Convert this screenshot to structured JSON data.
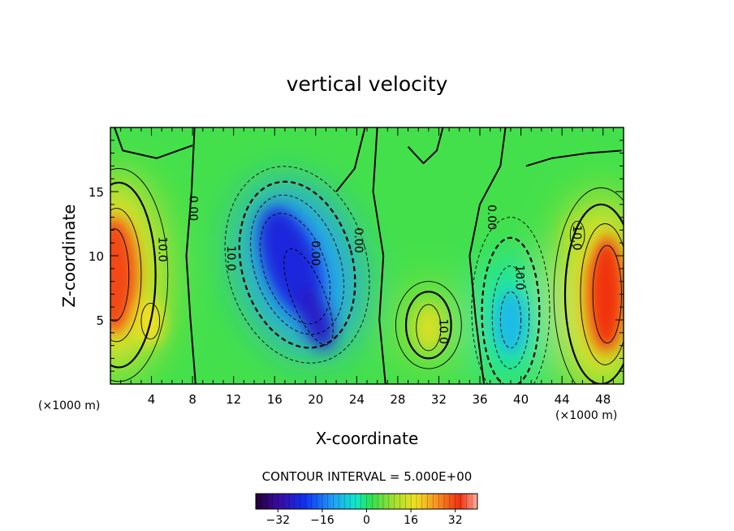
{
  "chart_data": {
    "type": "heatmap",
    "title": "vertical velocity",
    "xlabel": "X-coordinate",
    "ylabel": "Z-coordinate",
    "x_unit": "(×1000 m)",
    "x_unit_right": "(×1000 m)",
    "xlim": [
      0,
      50
    ],
    "ylim": [
      0,
      20
    ],
    "xticks": [
      4,
      8,
      12,
      16,
      20,
      24,
      28,
      32,
      36,
      40,
      44,
      48
    ],
    "yticks": [
      5,
      10,
      15
    ],
    "contour_interval_label": "CONTOUR INTERVAL = 5.000E+00",
    "colorbar": {
      "range": [
        -40,
        40
      ],
      "ticks": [
        -32,
        -16,
        0,
        16,
        32
      ],
      "tick_labels": [
        "−32",
        "−16",
        "0",
        "16",
        "32"
      ]
    },
    "contour_labels": [
      {
        "text": "0.00",
        "x": 7.7,
        "z": 13.7
      },
      {
        "text": "10.0",
        "x": 4.7,
        "z": 10.5
      },
      {
        "text": "10.0",
        "x": 11.4,
        "z": 9.8
      },
      {
        "text": "0.00",
        "x": 19.6,
        "z": 10.2
      },
      {
        "text": "0.00",
        "x": 23.8,
        "z": 11.2
      },
      {
        "text": "10.0",
        "x": 32.1,
        "z": 4.1
      },
      {
        "text": "0.00",
        "x": 36.8,
        "z": 13.0
      },
      {
        "text": "10.0",
        "x": 39.5,
        "z": 8.3
      },
      {
        "text": "10.0",
        "x": 45.1,
        "z": 11.4
      }
    ],
    "features": [
      {
        "name": "left updraft",
        "x": 0.6,
        "z": 8.5,
        "peak": 30
      },
      {
        "name": "left updraft (lower lobe)",
        "x": 3.8,
        "z": 4.8,
        "peak": 16
      },
      {
        "name": "central downdraft",
        "x": 18.0,
        "z": 9.5,
        "peak": -34
      },
      {
        "name": "central downdraft (lower core)",
        "x": 20.5,
        "z": 4.5,
        "peak": -30
      },
      {
        "name": "central updraft",
        "x": 31.0,
        "z": 4.5,
        "peak": 14
      },
      {
        "name": "right downdraft",
        "x": 39.0,
        "z": 5.0,
        "peak": -15
      },
      {
        "name": "right updraft",
        "x": 48.0,
        "z": 7.0,
        "peak": 34
      },
      {
        "name": "right updraft (upper lobe)",
        "x": 45.5,
        "z": 11.6,
        "peak": 12
      }
    ]
  }
}
